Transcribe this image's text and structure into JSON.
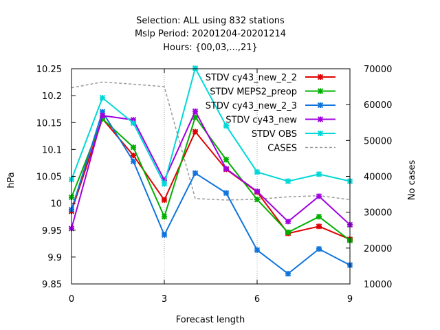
{
  "chart_data": {
    "type": "line",
    "title_lines": [
      "Selection: ALL using   832 stations",
      "Mslp   Period: 20201204-20201214",
      "Hours: {00,03,...,21}"
    ],
    "xlabel": "Forecast length",
    "ylabel": "hPa",
    "y2label": "No cases",
    "x": [
      0,
      1,
      2,
      3,
      4,
      5,
      6,
      7,
      8,
      9
    ],
    "x_ticks": [
      0,
      3,
      6,
      9
    ],
    "xlim": [
      0,
      9
    ],
    "ylim": [
      9.85,
      10.25
    ],
    "y_ticks": [
      "9.85",
      "9.9",
      "9.95",
      "10",
      "10.05",
      "10.1",
      "10.15",
      "10.2",
      "10.25"
    ],
    "y2lim": [
      10000,
      70000
    ],
    "y2_ticks": [
      "10000",
      "20000",
      "30000",
      "40000",
      "50000",
      "60000",
      "70000"
    ],
    "grid": "x-only at major ticks",
    "legend_position": "top-right",
    "series": [
      {
        "name": "STDV cy43_new_2_2",
        "color": "#e00000",
        "axis": "y1",
        "values": [
          9.985,
          10.157,
          10.089,
          10.006,
          10.133,
          10.063,
          10.021,
          9.944,
          9.957,
          9.933
        ]
      },
      {
        "name": "STDV MEPS2_preop",
        "color": "#00b000",
        "axis": "y1",
        "values": [
          10.011,
          10.157,
          10.104,
          9.975,
          10.16,
          10.081,
          10.007,
          9.946,
          9.975,
          9.931
        ]
      },
      {
        "name": "STDV cy43_new_2_3",
        "color": "#0f74dc",
        "axis": "y1",
        "values": [
          9.988,
          10.17,
          10.078,
          9.941,
          10.056,
          10.019,
          9.913,
          9.869,
          9.915,
          9.885
        ]
      },
      {
        "name": "STDV cy43_new",
        "color": "#a000e0",
        "axis": "y1",
        "values": [
          9.953,
          10.163,
          10.155,
          10.043,
          10.171,
          10.064,
          10.022,
          9.966,
          10.013,
          9.96
        ]
      },
      {
        "name": "STDV OBS",
        "color": "#00d8d8",
        "axis": "y1",
        "values": [
          10.044,
          10.196,
          10.149,
          10.036,
          10.251,
          10.144,
          10.058,
          10.041,
          10.054,
          10.041
        ]
      },
      {
        "name": "CASES",
        "color": "#999999",
        "axis": "y2",
        "dashed": true,
        "values": [
          64700,
          66300,
          65700,
          65000,
          33800,
          33400,
          33600,
          34300,
          34600,
          33500
        ]
      }
    ]
  }
}
